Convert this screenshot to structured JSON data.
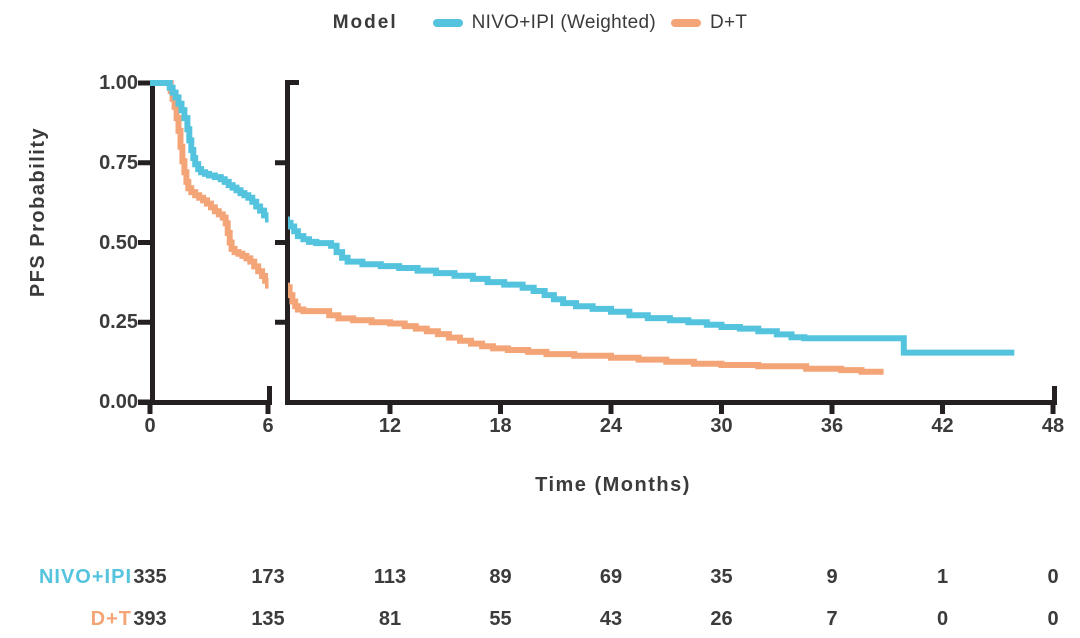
{
  "legend": {
    "title": "Model",
    "items": [
      {
        "label": "NIVO+IPI (Weighted)",
        "color": "#54c3de"
      },
      {
        "label": "D+T",
        "color": "#f4a578"
      }
    ]
  },
  "y_axis": {
    "title": "PFS Probability",
    "tick_labels": [
      "1.00",
      "0.75",
      "0.50",
      "0.25",
      "0.00"
    ],
    "tick_values": [
      1.0,
      0.75,
      0.5,
      0.25,
      0.0
    ]
  },
  "x_axis": {
    "title": "Time (Months)",
    "tick_labels": [
      "0",
      "6",
      "12",
      "18",
      "24",
      "30",
      "36",
      "42",
      "48"
    ],
    "tick_values": [
      0,
      6,
      12,
      18,
      24,
      30,
      36,
      42,
      48
    ],
    "axis_break_after_month": 6
  },
  "chart_data": {
    "type": "line",
    "subtype": "kaplan-meier-step",
    "xlabel": "Time (Months)",
    "ylabel": "PFS Probability",
    "xlim": [
      0,
      48
    ],
    "ylim": [
      0,
      1
    ],
    "grid": false,
    "legend_position": "top-center",
    "x_axis_break": true,
    "break_between_months": [
      6,
      7
    ],
    "series": [
      {
        "name": "NIVO+IPI (Weighted)",
        "color": "#54c3de",
        "points": [
          [
            0,
            1.0
          ],
          [
            0.9,
            1.0
          ],
          [
            1.0,
            0.985
          ],
          [
            1.15,
            0.97
          ],
          [
            1.3,
            0.955
          ],
          [
            1.45,
            0.935
          ],
          [
            1.6,
            0.915
          ],
          [
            1.75,
            0.89
          ],
          [
            1.9,
            0.855
          ],
          [
            2.0,
            0.82
          ],
          [
            2.1,
            0.79
          ],
          [
            2.2,
            0.765
          ],
          [
            2.3,
            0.745
          ],
          [
            2.45,
            0.73
          ],
          [
            2.6,
            0.72
          ],
          [
            2.8,
            0.715
          ],
          [
            3.0,
            0.71
          ],
          [
            3.3,
            0.705
          ],
          [
            3.6,
            0.698
          ],
          [
            3.8,
            0.69
          ],
          [
            4.0,
            0.68
          ],
          [
            4.2,
            0.672
          ],
          [
            4.4,
            0.664
          ],
          [
            4.6,
            0.655
          ],
          [
            4.8,
            0.648
          ],
          [
            5.0,
            0.64
          ],
          [
            5.2,
            0.628
          ],
          [
            5.4,
            0.613
          ],
          [
            5.6,
            0.6
          ],
          [
            5.8,
            0.585
          ],
          [
            6.0,
            0.572
          ],
          [
            6.4,
            0.562
          ],
          [
            6.6,
            0.55
          ],
          [
            6.8,
            0.535
          ],
          [
            7.0,
            0.52
          ],
          [
            7.3,
            0.51
          ],
          [
            7.6,
            0.502
          ],
          [
            8.0,
            0.498
          ],
          [
            8.8,
            0.49
          ],
          [
            9.1,
            0.47
          ],
          [
            9.4,
            0.452
          ],
          [
            9.7,
            0.44
          ],
          [
            10.5,
            0.432
          ],
          [
            11.5,
            0.426
          ],
          [
            12.5,
            0.42
          ],
          [
            13.5,
            0.412
          ],
          [
            14.5,
            0.404
          ],
          [
            15.5,
            0.396
          ],
          [
            16.5,
            0.386
          ],
          [
            17.3,
            0.376
          ],
          [
            18.2,
            0.368
          ],
          [
            19.2,
            0.358
          ],
          [
            19.8,
            0.348
          ],
          [
            20.4,
            0.335
          ],
          [
            20.9,
            0.322
          ],
          [
            21.4,
            0.31
          ],
          [
            22.1,
            0.3
          ],
          [
            23.0,
            0.292
          ],
          [
            24.0,
            0.283
          ],
          [
            25.0,
            0.272
          ],
          [
            26.0,
            0.263
          ],
          [
            27.2,
            0.256
          ],
          [
            28.2,
            0.25
          ],
          [
            29.2,
            0.242
          ],
          [
            30.0,
            0.235
          ],
          [
            31.0,
            0.23
          ],
          [
            32.0,
            0.222
          ],
          [
            33.0,
            0.212
          ],
          [
            33.8,
            0.203
          ],
          [
            34.5,
            0.2
          ],
          [
            39.9,
            0.155
          ],
          [
            45.9,
            0.155
          ]
        ]
      },
      {
        "name": "D+T",
        "color": "#f4a578",
        "points": [
          [
            0,
            1.0
          ],
          [
            0.95,
            1.0
          ],
          [
            1.05,
            0.975
          ],
          [
            1.15,
            0.95
          ],
          [
            1.25,
            0.925
          ],
          [
            1.35,
            0.89
          ],
          [
            1.45,
            0.85
          ],
          [
            1.55,
            0.8
          ],
          [
            1.65,
            0.755
          ],
          [
            1.75,
            0.72
          ],
          [
            1.85,
            0.69
          ],
          [
            1.95,
            0.67
          ],
          [
            2.1,
            0.658
          ],
          [
            2.3,
            0.648
          ],
          [
            2.5,
            0.64
          ],
          [
            2.7,
            0.632
          ],
          [
            2.9,
            0.622
          ],
          [
            3.1,
            0.61
          ],
          [
            3.3,
            0.598
          ],
          [
            3.5,
            0.588
          ],
          [
            3.7,
            0.578
          ],
          [
            3.85,
            0.56
          ],
          [
            3.95,
            0.53
          ],
          [
            4.05,
            0.5
          ],
          [
            4.15,
            0.48
          ],
          [
            4.3,
            0.47
          ],
          [
            4.5,
            0.465
          ],
          [
            4.7,
            0.458
          ],
          [
            4.9,
            0.45
          ],
          [
            5.1,
            0.44
          ],
          [
            5.3,
            0.425
          ],
          [
            5.5,
            0.41
          ],
          [
            5.7,
            0.395
          ],
          [
            5.85,
            0.38
          ],
          [
            6.0,
            0.365
          ],
          [
            6.4,
            0.36
          ],
          [
            6.55,
            0.335
          ],
          [
            6.7,
            0.315
          ],
          [
            6.85,
            0.3
          ],
          [
            7.0,
            0.29
          ],
          [
            7.3,
            0.285
          ],
          [
            8.7,
            0.272
          ],
          [
            9.2,
            0.262
          ],
          [
            10.0,
            0.256
          ],
          [
            11.0,
            0.25
          ],
          [
            12.0,
            0.246
          ],
          [
            12.8,
            0.238
          ],
          [
            13.4,
            0.23
          ],
          [
            14.0,
            0.222
          ],
          [
            14.6,
            0.213
          ],
          [
            15.2,
            0.202
          ],
          [
            15.8,
            0.192
          ],
          [
            16.4,
            0.183
          ],
          [
            17.0,
            0.175
          ],
          [
            17.6,
            0.168
          ],
          [
            18.4,
            0.163
          ],
          [
            19.5,
            0.157
          ],
          [
            20.5,
            0.15
          ],
          [
            22.0,
            0.145
          ],
          [
            24.0,
            0.139
          ],
          [
            25.5,
            0.133
          ],
          [
            27.0,
            0.126
          ],
          [
            28.5,
            0.12
          ],
          [
            30.0,
            0.116
          ],
          [
            32.0,
            0.112
          ],
          [
            34.6,
            0.104
          ],
          [
            36.5,
            0.1
          ],
          [
            37.6,
            0.095
          ],
          [
            38.8,
            0.095
          ]
        ]
      }
    ]
  },
  "risk_table": {
    "time_points": [
      0,
      6,
      12,
      18,
      24,
      30,
      36,
      42,
      48
    ],
    "rows": [
      {
        "label": "NIVO+IPI",
        "color": "#54c3de",
        "counts": [
          "335",
          "173",
          "113",
          "89",
          "69",
          "35",
          "9",
          "1",
          "0"
        ]
      },
      {
        "label": "D+T",
        "color": "#f4a578",
        "counts": [
          "393",
          "135",
          "81",
          "55",
          "43",
          "26",
          "7",
          "0",
          "0"
        ]
      }
    ]
  },
  "colors": {
    "axis": "#242021",
    "text": "#3b3b3b",
    "background": "#ffffff"
  }
}
